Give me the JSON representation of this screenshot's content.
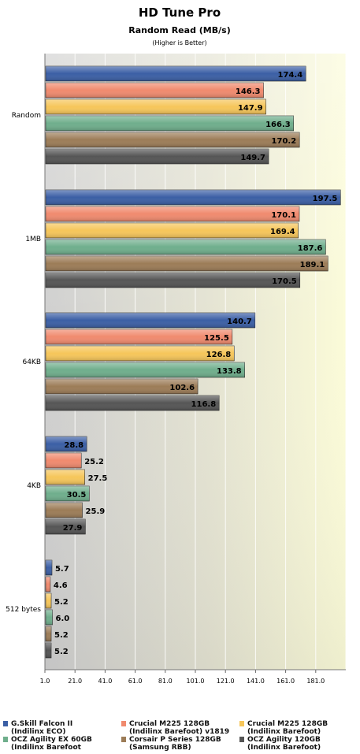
{
  "chart_data": {
    "type": "bar",
    "orientation": "horizontal",
    "title": "HD Tune Pro",
    "subtitle": "Random Read (MB/s)",
    "note": "(Higher is Better)",
    "categories": [
      "Random",
      "1MB",
      "64KB",
      "4KB",
      "512 bytes"
    ],
    "xlim": [
      1.0,
      201.0
    ],
    "x_ticks": [
      "1.0",
      "21.0",
      "41.0",
      "61.0",
      "81.0",
      "101.0",
      "121.0",
      "141.0",
      "161.0",
      "181.0"
    ],
    "x_tick_values": [
      1,
      21,
      41,
      61,
      81,
      101,
      121,
      141,
      161,
      181
    ],
    "grid": true,
    "legend_position": "bottom",
    "series": [
      {
        "name_lines": [
          "G.Skill Falcon II",
          "(Indilinx ECO)"
        ],
        "color": "#3b5fa5",
        "values": [
          174.4,
          197.5,
          140.7,
          28.8,
          5.7
        ],
        "labels": [
          "174.4",
          "197.5",
          "140.7",
          "28.8",
          "5.7"
        ]
      },
      {
        "name_lines": [
          "Crucial M225 128GB",
          "(Indilinx Barefoot) v1819"
        ],
        "color": "#f08a6e",
        "values": [
          146.3,
          170.1,
          125.5,
          25.2,
          4.6
        ],
        "labels": [
          "146.3",
          "170.1",
          "125.5",
          "25.2",
          "4.6"
        ]
      },
      {
        "name_lines": [
          "Crucial M225 128GB",
          "(Indilinx Barefoot)"
        ],
        "color": "#f6c65a",
        "values": [
          147.9,
          169.4,
          126.8,
          27.5,
          5.2
        ],
        "labels": [
          "147.9",
          "169.4",
          "126.8",
          "27.5",
          "5.2"
        ]
      },
      {
        "name_lines": [
          "OCZ Agility EX 60GB",
          "(Indilinx Barefoot"
        ],
        "color": "#6fae8c",
        "values": [
          166.3,
          187.6,
          133.8,
          30.5,
          6.0
        ],
        "labels": [
          "166.3",
          "187.6",
          "133.8",
          "30.5",
          "6.0"
        ]
      },
      {
        "name_lines": [
          "Corsair P Series 128GB",
          "(Samsung RBB)"
        ],
        "color": "#9c7c57",
        "values": [
          170.2,
          189.1,
          102.6,
          25.9,
          5.2
        ],
        "labels": [
          "170.2",
          "189.1",
          "102.6",
          "25.9",
          "5.2"
        ]
      },
      {
        "name_lines": [
          "OCZ Agility 120GB",
          "(Indilinx Barefoot)"
        ],
        "color": "#555555",
        "values": [
          149.7,
          170.5,
          116.8,
          27.9,
          5.2
        ],
        "labels": [
          "149.7",
          "170.5",
          "116.8",
          "27.9",
          "5.2"
        ]
      }
    ]
  }
}
